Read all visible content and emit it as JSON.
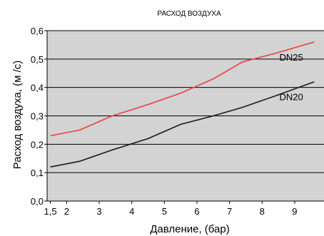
{
  "chart_data": {
    "type": "line",
    "title": "РАСХОД ВОЗДУХА",
    "xlabel": "Давление, (бар)",
    "ylabel": "Расход воздуха, (м /с)",
    "xlim": [
      1.4,
      9.9
    ],
    "ylim": [
      0,
      0.6
    ],
    "xticks": [
      1.5,
      2,
      3,
      4,
      5,
      6,
      7,
      8,
      9
    ],
    "xtick_labels": [
      "1,5",
      "2",
      "3",
      "4",
      "5",
      "6",
      "7",
      "8",
      "9"
    ],
    "yticks": [
      0,
      0.1,
      0.2,
      0.3,
      0.4,
      0.5,
      0.6
    ],
    "ytick_labels": [
      "0,0",
      "0,1",
      "0,2",
      "0,3",
      "0,4",
      "0,5",
      "0,6"
    ],
    "grid": "horizontal",
    "plot_background": "#d3d3d3",
    "series": [
      {
        "name": "DN25",
        "color": "#e8413c",
        "x": [
          1.5,
          2.4,
          3.4,
          4.5,
          5.5,
          6.5,
          7.4,
          8.4,
          9.6
        ],
        "y": [
          0.23,
          0.25,
          0.3,
          0.34,
          0.38,
          0.43,
          0.49,
          0.52,
          0.56
        ]
      },
      {
        "name": "DN20",
        "color": "#1a1a1a",
        "x": [
          1.5,
          2.4,
          3.4,
          4.5,
          5.5,
          6.5,
          7.4,
          8.4,
          9.6
        ],
        "y": [
          0.12,
          0.14,
          0.18,
          0.22,
          0.27,
          0.3,
          0.33,
          0.37,
          0.42
        ]
      }
    ]
  }
}
